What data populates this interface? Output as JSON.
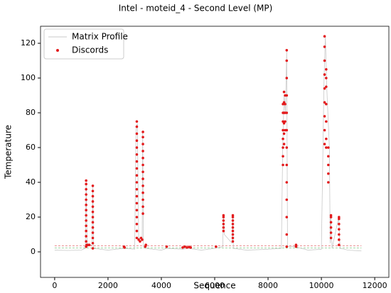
{
  "chart_data": {
    "type": "scatter",
    "title": "Intel - moteid_4 - Second Level (MP)",
    "xlabel": "Sequence",
    "ylabel": "Temperature",
    "xlim": [
      -530,
      12530
    ],
    "ylim": [
      -14.7,
      129.8
    ],
    "xticks": [
      0,
      2000,
      4000,
      6000,
      8000,
      10000,
      12000
    ],
    "yticks": [
      0,
      20,
      40,
      60,
      80,
      100,
      120
    ],
    "legend": "upper left",
    "hlines": [
      {
        "value": 2.2,
        "color": "#2ca02c"
      },
      {
        "value": 3.5,
        "color": "#d62728"
      }
    ],
    "series": [
      {
        "name": "Matrix Profile",
        "kind": "line",
        "color": "#c8c8c8",
        "x": [
          0,
          500,
          1000,
          1150,
          1180,
          1220,
          1400,
          1430,
          1460,
          2000,
          2600,
          3000,
          3050,
          3100,
          3150,
          3280,
          3300,
          3330,
          3400,
          4000,
          4200,
          4800,
          5000,
          5500,
          6000,
          6300,
          6330,
          6360,
          6650,
          6680,
          6700,
          7200,
          8000,
          8500,
          8550,
          8600,
          8650,
          8700,
          8730,
          9000,
          9500,
          10000,
          10100,
          10150,
          10200,
          10300,
          10330,
          10350,
          10400,
          10650,
          10700,
          11000,
          11500
        ],
        "values": [
          1,
          0.8,
          1,
          2,
          40,
          3,
          4,
          38,
          2,
          1,
          2,
          1.5,
          70,
          74,
          8,
          7,
          69,
          3,
          2,
          1,
          2,
          1.5,
          2,
          1,
          2,
          3,
          21,
          10,
          5,
          21,
          2,
          1,
          1.5,
          2,
          60,
          90,
          80,
          116,
          3,
          3,
          1,
          1.5,
          100,
          124,
          95,
          60,
          5,
          21,
          2,
          20,
          2,
          1,
          0.5
        ]
      },
      {
        "name": "Discords",
        "kind": "scatter",
        "color": "#e31a1c",
        "x": [
          1180,
          1180,
          1180,
          1180,
          1180,
          1180,
          1180,
          1180,
          1180,
          1180,
          1180,
          1180,
          1180,
          1180,
          1200,
          1250,
          1300,
          1430,
          1430,
          1430,
          1430,
          1430,
          1430,
          1430,
          1430,
          1430,
          1430,
          1430,
          1430,
          1430,
          2600,
          2620,
          3080,
          3080,
          3080,
          3080,
          3080,
          3080,
          3080,
          3080,
          3080,
          3080,
          3080,
          3080,
          3080,
          3080,
          3080,
          3080,
          3080,
          3080,
          3150,
          3200,
          3240,
          3280,
          3310,
          3310,
          3310,
          3310,
          3310,
          3310,
          3310,
          3310,
          3310,
          3310,
          3310,
          3310,
          3310,
          3400,
          3420,
          4200,
          4800,
          4880,
          4960,
          5040,
          5100,
          6050,
          6330,
          6330,
          6330,
          6330,
          6330,
          6330,
          6680,
          6680,
          6680,
          6680,
          6680,
          6680,
          6680,
          6680,
          6680,
          8560,
          8560,
          8560,
          8560,
          8560,
          8560,
          8560,
          8560,
          8600,
          8600,
          8600,
          8600,
          8600,
          8600,
          8640,
          8640,
          8640,
          8640,
          8640,
          8700,
          8700,
          8700,
          8700,
          8700,
          8700,
          8700,
          8700,
          8700,
          8700,
          8700,
          8700,
          8700,
          9050,
          9050,
          10120,
          10120,
          10120,
          10120,
          10120,
          10120,
          10120,
          10120,
          10120,
          10180,
          10180,
          10180,
          10180,
          10180,
          10180,
          10180,
          10260,
          10260,
          10260,
          10260,
          10260,
          10360,
          10360,
          10360,
          10360,
          10360,
          10360,
          10660,
          10660,
          10660,
          10660,
          10660,
          10660,
          10660
        ],
        "values": [
          3,
          6,
          9,
          12,
          15,
          18,
          21,
          24,
          27,
          30,
          33,
          36,
          39,
          41,
          4,
          4,
          4,
          2,
          5,
          8,
          11,
          14,
          17,
          20,
          23,
          26,
          29,
          32,
          35,
          38,
          3,
          2.5,
          8,
          12,
          16,
          20,
          24,
          28,
          32,
          36,
          40,
          44,
          48,
          52,
          56,
          60,
          64,
          68,
          72,
          75,
          7,
          6,
          8,
          7,
          22,
          26,
          30,
          34,
          38,
          42,
          46,
          50,
          54,
          58,
          62,
          66,
          69,
          3,
          4,
          3,
          2.5,
          3,
          2.5,
          2.8,
          2.5,
          3,
          12,
          14,
          16,
          18,
          20,
          21,
          6,
          8,
          10,
          12,
          14,
          16,
          18,
          20,
          21,
          50,
          55,
          60,
          65,
          70,
          75,
          80,
          85,
          62,
          68,
          74,
          80,
          86,
          92,
          70,
          75,
          80,
          85,
          90,
          3,
          10,
          20,
          30,
          40,
          50,
          60,
          70,
          80,
          90,
          100,
          110,
          116,
          3,
          4,
          62,
          70,
          78,
          86,
          94,
          102,
          110,
          118,
          124,
          60,
          65,
          75,
          85,
          95,
          100,
          105,
          40,
          45,
          50,
          55,
          60,
          8,
          11,
          14,
          17,
          20,
          21,
          4,
          7,
          10,
          13,
          16,
          19,
          20
        ]
      }
    ]
  }
}
